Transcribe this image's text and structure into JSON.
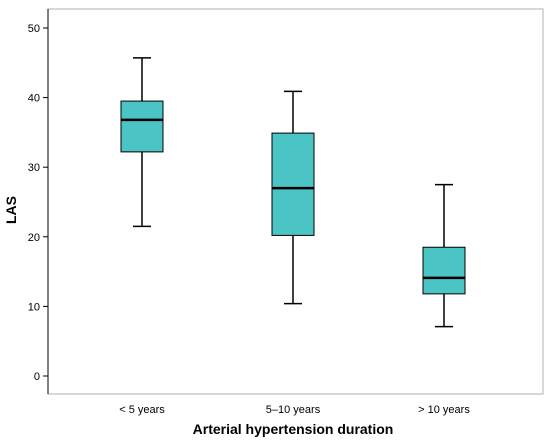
{
  "chart_data": {
    "type": "box",
    "xlabel": "Arterial hypertension duration",
    "ylabel": "LAS",
    "ylim": [
      0,
      50
    ],
    "yticks": [
      0,
      10,
      20,
      30,
      40,
      50
    ],
    "categories": [
      "< 5 years",
      "5–10 years",
      "> 10 years"
    ],
    "boxes": [
      {
        "category": "< 5 years",
        "min": 21.5,
        "q1": 32.2,
        "median": 36.8,
        "q3": 39.5,
        "max": 45.7
      },
      {
        "category": "5–10 years",
        "min": 10.4,
        "q1": 20.2,
        "median": 27.0,
        "q3": 34.9,
        "max": 40.9
      },
      {
        "category": "> 10 years",
        "min": 7.1,
        "q1": 11.8,
        "median": 14.1,
        "q3": 18.5,
        "max": 27.5
      }
    ],
    "grid": false,
    "colors": {
      "box_fill": "#4bc4c6",
      "line": "#000000",
      "frame": "#b0b0b0"
    }
  }
}
